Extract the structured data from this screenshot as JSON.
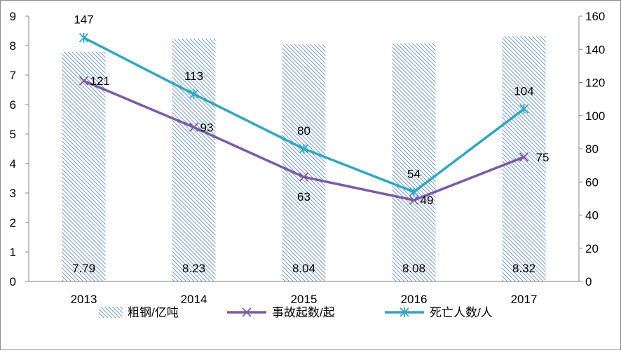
{
  "chart_data": {
    "type": "bar",
    "categories": [
      "2013",
      "2014",
      "2015",
      "2016",
      "2017"
    ],
    "series": [
      {
        "name": "粗钢/亿吨",
        "type": "bar",
        "axis": "left",
        "values": [
          7.79,
          8.23,
          8.04,
          8.08,
          8.32
        ],
        "labels": [
          "7.79",
          "8.23",
          "8.04",
          "8.08",
          "8.32"
        ],
        "color": "#4f81bd"
      },
      {
        "name": "事故起数/起",
        "type": "line",
        "marker": "x",
        "axis": "right",
        "values": [
          121,
          93,
          63,
          49,
          75
        ],
        "labels": [
          "121",
          "93",
          "63",
          "49",
          "75"
        ],
        "color": "#7b5aa6"
      },
      {
        "name": "死亡人数/人",
        "type": "line",
        "marker": "asterisk",
        "axis": "right",
        "values": [
          147,
          113,
          80,
          54,
          104
        ],
        "labels": [
          "147",
          "113",
          "80",
          "54",
          "104"
        ],
        "color": "#31a6c2"
      }
    ],
    "y_left": {
      "min": 0,
      "max": 9,
      "step": 1,
      "ticks": [
        "0",
        "1",
        "2",
        "3",
        "4",
        "5",
        "6",
        "7",
        "8",
        "9"
      ]
    },
    "y_right": {
      "min": 0,
      "max": 160,
      "step": 20,
      "ticks": [
        "0",
        "20",
        "40",
        "60",
        "80",
        "100",
        "120",
        "140",
        "160"
      ]
    },
    "grid": false,
    "legend_position": "bottom"
  }
}
